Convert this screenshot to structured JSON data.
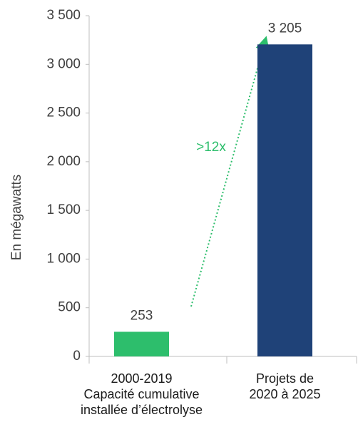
{
  "chart_data": {
    "type": "bar",
    "y_label": "En mégawatts",
    "categories": [
      "2000-2019\nCapacité cumulative\ninstallée d’électrolyse",
      "Projets de\n2020 à 2025"
    ],
    "values": [
      253,
      3205
    ],
    "value_labels": [
      "253",
      "3 205"
    ],
    "colors": [
      "#2dbe6c",
      "#1f4278"
    ],
    "annotation": ">12x",
    "annotation_color": "#2dbe6c",
    "ylim": [
      0,
      3500
    ],
    "yticks": [
      0,
      500,
      {
        "value": 1000,
        "label": "1 000"
      },
      {
        "value": 1500,
        "label": "1 500"
      },
      {
        "value": 2000,
        "label": "2 000"
      },
      {
        "value": 2500,
        "label": "2 500"
      },
      {
        "value": 3000,
        "label": "3 000"
      },
      {
        "value": 3500,
        "label": "3 500"
      }
    ],
    "grid": false
  }
}
